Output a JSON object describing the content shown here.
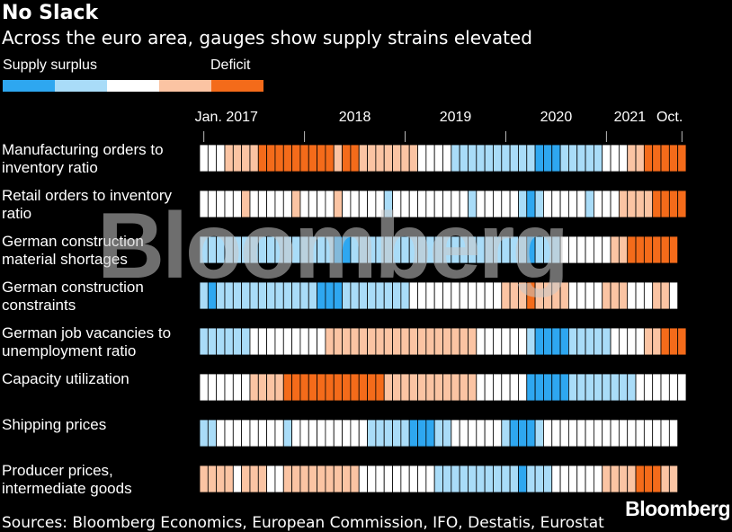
{
  "chart_data": {
    "type": "heatmap",
    "title": "No Slack",
    "subtitle": "Across the euro area, gauges show supply strains elevated",
    "legend_labels": [
      "Supply surplus",
      "Deficit"
    ],
    "levels": [
      -2,
      -1,
      0,
      1,
      2
    ],
    "colors": [
      "#2ea7f0",
      "#a9dcf8",
      "#ffffff",
      "#fbc4a3",
      "#f46b1a"
    ],
    "x": [
      "2017-01",
      "2017-02",
      "2017-03",
      "2017-04",
      "2017-05",
      "2017-06",
      "2017-07",
      "2017-08",
      "2017-09",
      "2017-10",
      "2017-11",
      "2017-12",
      "2018-01",
      "2018-02",
      "2018-03",
      "2018-04",
      "2018-05",
      "2018-06",
      "2018-07",
      "2018-08",
      "2018-09",
      "2018-10",
      "2018-11",
      "2018-12",
      "2019-01",
      "2019-02",
      "2019-03",
      "2019-04",
      "2019-05",
      "2019-06",
      "2019-07",
      "2019-08",
      "2019-09",
      "2019-10",
      "2019-11",
      "2019-12",
      "2020-01",
      "2020-02",
      "2020-03",
      "2020-04",
      "2020-05",
      "2020-06",
      "2020-07",
      "2020-08",
      "2020-09",
      "2020-10",
      "2020-11",
      "2020-12",
      "2021-01",
      "2021-02",
      "2021-03",
      "2021-04",
      "2021-05",
      "2021-06",
      "2021-07",
      "2021-08",
      "2021-09",
      "2021-10"
    ],
    "xticks": [
      {
        "value": "2017-01",
        "label": "Jan. 2017"
      },
      {
        "value": "2018-01",
        "label": "2018"
      },
      {
        "value": "2019-01",
        "label": "2019"
      },
      {
        "value": "2020-01",
        "label": "2020"
      },
      {
        "value": "2021-01",
        "label": "2021"
      },
      {
        "value": "2021-10",
        "label": "Oct."
      }
    ],
    "series": [
      {
        "name": "Manufacturing orders to inventory ratio",
        "values": [
          0,
          0,
          0,
          1,
          1,
          1,
          1,
          2,
          2,
          2,
          2,
          2,
          2,
          2,
          2,
          2,
          1,
          2,
          2,
          1,
          1,
          1,
          1,
          1,
          1,
          1,
          0,
          0,
          0,
          0,
          -1,
          -1,
          -1,
          -1,
          -1,
          -1,
          -1,
          -1,
          -1,
          -1,
          -2,
          -2,
          -2,
          -1,
          -1,
          -1,
          -1,
          -1,
          0,
          0,
          0,
          1,
          1,
          2,
          2,
          2,
          2,
          2
        ]
      },
      {
        "name": "Retail orders to inventory ratio",
        "values": [
          0,
          0,
          0,
          0,
          0,
          1,
          0,
          0,
          0,
          0,
          0,
          1,
          0,
          0,
          0,
          0,
          1,
          0,
          0,
          0,
          0,
          0,
          -1,
          0,
          0,
          0,
          0,
          0,
          0,
          0,
          0,
          0,
          -1,
          0,
          0,
          0,
          0,
          0,
          -1,
          -2,
          -1,
          0,
          0,
          0,
          0,
          0,
          -1,
          0,
          0,
          0,
          1,
          1,
          1,
          1,
          2,
          2,
          2,
          2
        ]
      },
      {
        "name": "German construction material shortages",
        "values": [
          -1,
          -1,
          -1,
          -1,
          -1,
          -1,
          -1,
          -1,
          -1,
          -1,
          -1,
          -1,
          -1,
          -1,
          -1,
          -1,
          -2,
          -2,
          -1,
          -1,
          -1,
          -1,
          -1,
          -1,
          -1,
          -1,
          -1,
          -1,
          -1,
          -1,
          -1,
          -1,
          -1,
          -1,
          -1,
          -1,
          -1,
          -1,
          -1,
          -2,
          -1,
          -1,
          -1,
          0,
          0,
          0,
          0,
          0,
          0,
          1,
          1,
          2,
          2,
          2,
          2,
          2,
          2,
          null
        ]
      },
      {
        "name": "German construction constraints",
        "values": [
          -1,
          -2,
          -1,
          -1,
          -1,
          -1,
          -1,
          -1,
          -1,
          -1,
          -1,
          -1,
          -1,
          -1,
          -2,
          -2,
          -2,
          -1,
          -1,
          -1,
          -1,
          -1,
          -1,
          -1,
          -1,
          0,
          0,
          0,
          0,
          0,
          0,
          0,
          0,
          0,
          0,
          0,
          1,
          1,
          1,
          2,
          1,
          1,
          1,
          1,
          0,
          0,
          0,
          0,
          1,
          1,
          1,
          0,
          0,
          0,
          1,
          1,
          0,
          null
        ]
      },
      {
        "name": "German job vacancies to unemployment ratio",
        "values": [
          -1,
          -1,
          -1,
          -1,
          -1,
          -1,
          0,
          0,
          0,
          0,
          0,
          0,
          0,
          0,
          0,
          1,
          1,
          1,
          1,
          1,
          1,
          1,
          1,
          1,
          1,
          1,
          1,
          1,
          1,
          1,
          1,
          1,
          1,
          0,
          0,
          0,
          0,
          0,
          0,
          -1,
          -2,
          -2,
          -2,
          -2,
          -1,
          -1,
          -1,
          -1,
          -1,
          0,
          0,
          0,
          0,
          1,
          1,
          2,
          2,
          2
        ]
      },
      {
        "name": "Capacity utilization",
        "values": [
          0,
          0,
          0,
          0,
          0,
          0,
          1,
          1,
          1,
          1,
          2,
          2,
          2,
          2,
          2,
          2,
          2,
          2,
          2,
          2,
          2,
          2,
          1,
          1,
          1,
          1,
          1,
          1,
          1,
          1,
          1,
          1,
          1,
          0,
          0,
          0,
          0,
          0,
          0,
          -2,
          -2,
          -2,
          -2,
          -2,
          -1,
          -1,
          -1,
          -1,
          -1,
          -1,
          -1,
          -1,
          0,
          0,
          0,
          0,
          0,
          0
        ]
      },
      {
        "name": "Shipping prices",
        "values": [
          -1,
          -1,
          0,
          0,
          0,
          0,
          0,
          0,
          0,
          0,
          -1,
          0,
          0,
          0,
          0,
          0,
          0,
          0,
          0,
          0,
          -1,
          -1,
          -1,
          -1,
          -1,
          -2,
          -2,
          -2,
          -1,
          -1,
          0,
          0,
          0,
          0,
          0,
          0,
          -1,
          -2,
          -2,
          -2,
          -1,
          0,
          0,
          0,
          0,
          0,
          0,
          0,
          0,
          0,
          0,
          0,
          0,
          0,
          0,
          0,
          0,
          null
        ]
      },
      {
        "name": "Producer prices, intermediate goods",
        "values": [
          1,
          1,
          1,
          1,
          0,
          1,
          1,
          1,
          0,
          0,
          1,
          1,
          1,
          1,
          1,
          1,
          1,
          1,
          1,
          0,
          0,
          0,
          0,
          0,
          0,
          0,
          0,
          0,
          -1,
          -1,
          -1,
          -1,
          -1,
          -1,
          -1,
          -1,
          -1,
          -1,
          -2,
          -1,
          -1,
          -1,
          0,
          0,
          0,
          0,
          0,
          0,
          1,
          1,
          1,
          1,
          2,
          2,
          2,
          1,
          1,
          null
        ]
      }
    ],
    "source": "Sources: Bloomberg Economics, European Commission, IFO, Destatis, Eurostat",
    "logo": "Bloomberg",
    "watermark": "Bloomberg"
  }
}
